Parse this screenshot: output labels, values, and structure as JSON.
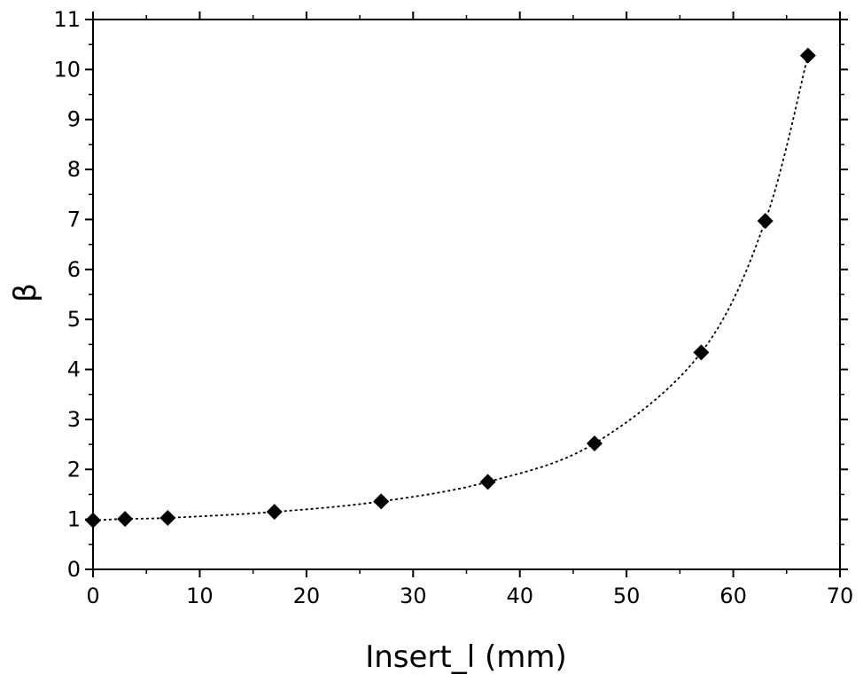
{
  "chart_data": {
    "type": "scatter",
    "title": "",
    "xlabel": "Insert_l (mm)",
    "ylabel": "β",
    "xlim": [
      0,
      70
    ],
    "ylim": [
      0,
      11
    ],
    "x_ticks": [
      0,
      10,
      20,
      30,
      40,
      50,
      60,
      70
    ],
    "y_ticks": [
      0,
      1,
      2,
      3,
      4,
      5,
      6,
      7,
      8,
      9,
      10,
      11
    ],
    "grid": false,
    "legend": "none",
    "series": [
      {
        "marker": "diamond",
        "line": "dotted-smooth",
        "color": "#000000",
        "points": [
          {
            "x": 0,
            "y": 0.98
          },
          {
            "x": 3,
            "y": 1.01
          },
          {
            "x": 7,
            "y": 1.03
          },
          {
            "x": 17,
            "y": 1.15
          },
          {
            "x": 27,
            "y": 1.36
          },
          {
            "x": 37,
            "y": 1.75
          },
          {
            "x": 47,
            "y": 2.52
          },
          {
            "x": 57,
            "y": 4.34
          },
          {
            "x": 63,
            "y": 6.97
          },
          {
            "x": 67,
            "y": 10.28
          }
        ]
      }
    ]
  }
}
